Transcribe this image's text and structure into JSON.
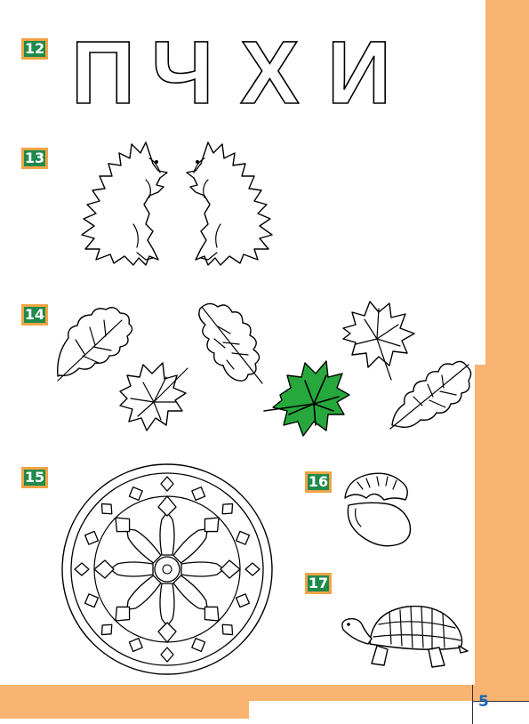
{
  "exercises": {
    "ex12": "12",
    "ex13": "13",
    "ex14": "14",
    "ex15": "15",
    "ex16": "16",
    "ex17": "17"
  },
  "letters": [
    "П",
    "Ч",
    "Х",
    "И"
  ],
  "page_number": "5",
  "colors": {
    "orange_border": "#f9b471",
    "badge_green": "#1f8a4c",
    "badge_border": "#f0a446",
    "leaf_green": "#26a83c",
    "page_number_blue": "#1668b8"
  },
  "icons": [
    "hedgehog-icon",
    "oak-leaf-icon",
    "maple-leaf-icon",
    "mandala-icon",
    "hazelnut-icon",
    "turtle-icon"
  ]
}
